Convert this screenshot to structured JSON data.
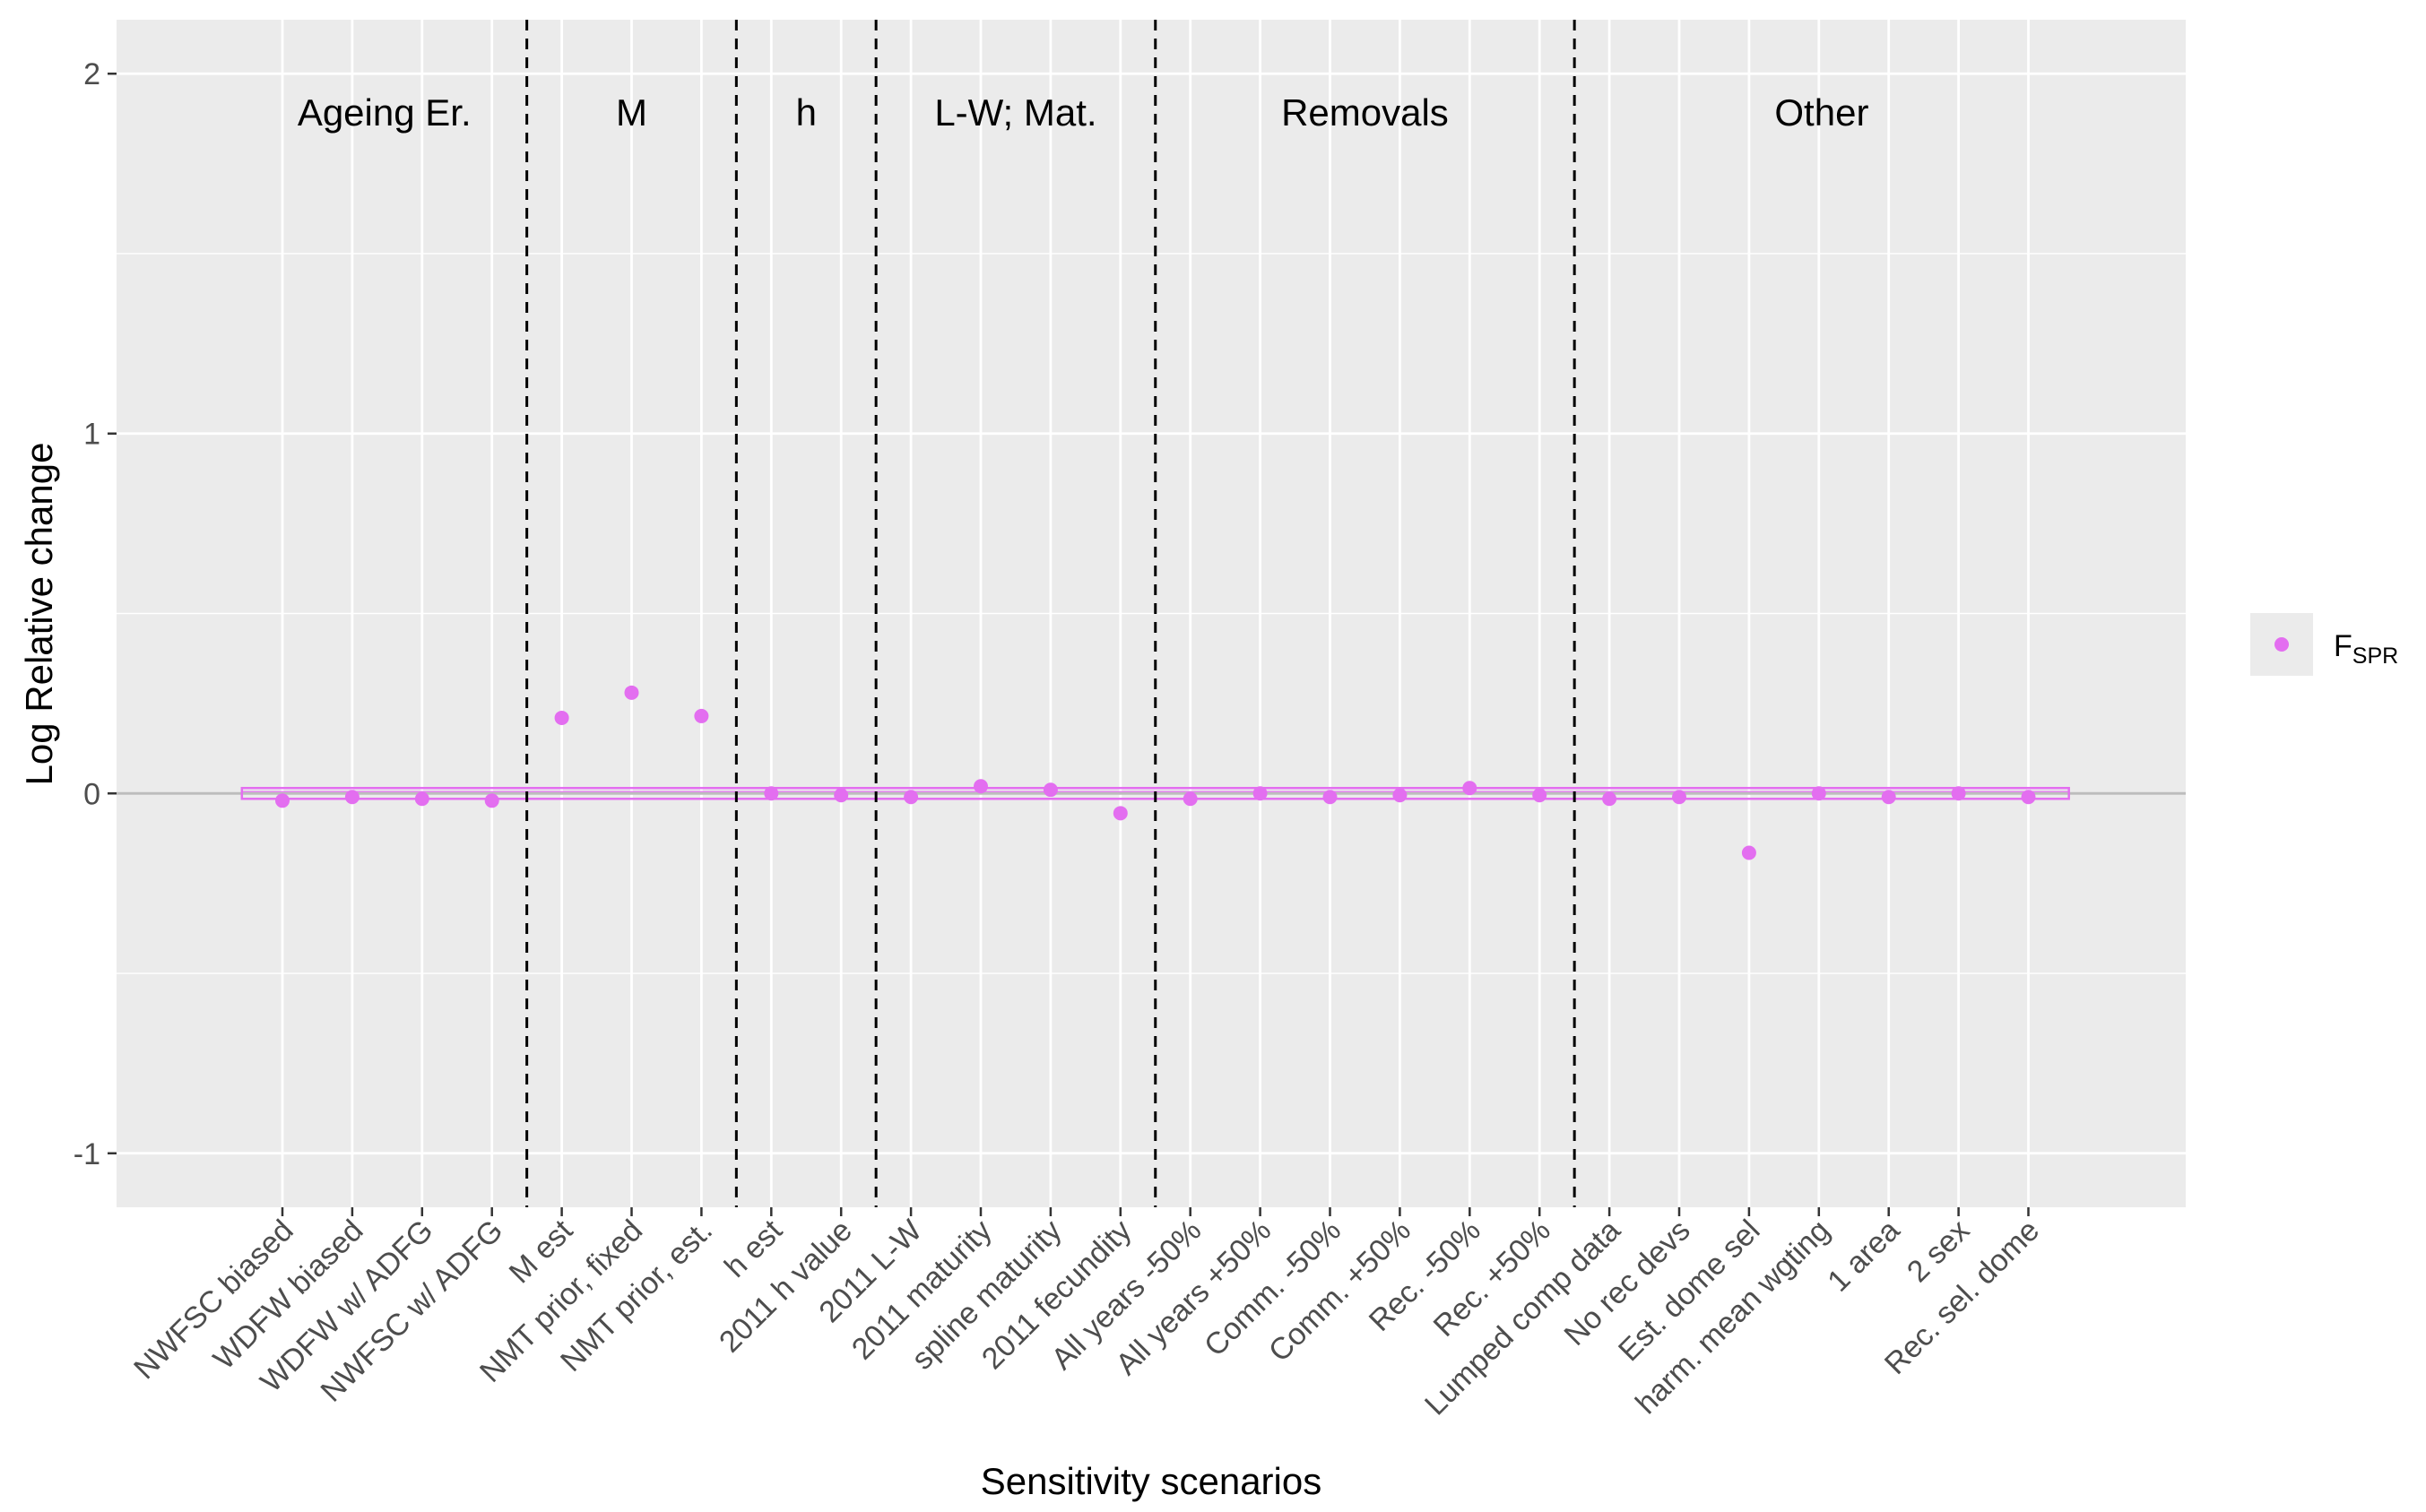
{
  "chart_data": {
    "type": "scatter",
    "xlabel": "Sensitivity scenarios",
    "ylabel": "Log Relative change",
    "ylim": [
      -1.15,
      2.15
    ],
    "y_ticks": [
      -1,
      0,
      1,
      2
    ],
    "y_tick_labels": [
      "-1",
      "0",
      "1",
      "2"
    ],
    "grid": true,
    "legend_position": "right",
    "reference_line_y": 0,
    "reference_band": [
      -0.015,
      0.015
    ],
    "categories": [
      "NWFSC biased",
      "WDFW biased",
      "WDFW w/ ADFG",
      "NWFSC w/ ADFG",
      "M est",
      "NMT prior, fixed",
      "NMT prior, est.",
      "h est",
      "2011 h value",
      "2011 L-W",
      "2011 maturity",
      "spline maturity",
      "2011 fecundity",
      "All years -50%",
      "All years +50%",
      "Comm. -50%",
      "Comm. +50%",
      "Rec. -50%",
      "Rec. +50%",
      "Lumped comp data",
      "No rec devs",
      "Est. dome sel",
      "harm. mean wgting",
      "1 area",
      "2 sex",
      "Rec. sel. dome"
    ],
    "series": [
      {
        "name": "F",
        "name_sub": "SPR",
        "color": "#e36ef0",
        "values": [
          -0.02,
          -0.01,
          -0.015,
          -0.02,
          0.21,
          0.28,
          0.215,
          0.0,
          -0.005,
          -0.01,
          0.02,
          0.01,
          -0.055,
          -0.015,
          0.0,
          -0.01,
          -0.005,
          0.015,
          -0.005,
          -0.015,
          -0.01,
          -0.165,
          0.0,
          -0.01,
          0.0,
          -0.01
        ]
      }
    ],
    "groups": [
      {
        "label": "Ageing Er.",
        "start": 0,
        "end": 3
      },
      {
        "label": "M",
        "start": 4,
        "end": 6
      },
      {
        "label": "h",
        "start": 7,
        "end": 8
      },
      {
        "label": "L-W; Mat.",
        "start": 9,
        "end": 12
      },
      {
        "label": "Removals",
        "start": 13,
        "end": 18
      },
      {
        "label": "Other",
        "start": 19,
        "end": 25
      }
    ]
  },
  "colors": {
    "panel_background": "#ebebeb",
    "grid": "#ffffff",
    "reference_line": "#bdbdbd",
    "series": "#e36ef0"
  }
}
